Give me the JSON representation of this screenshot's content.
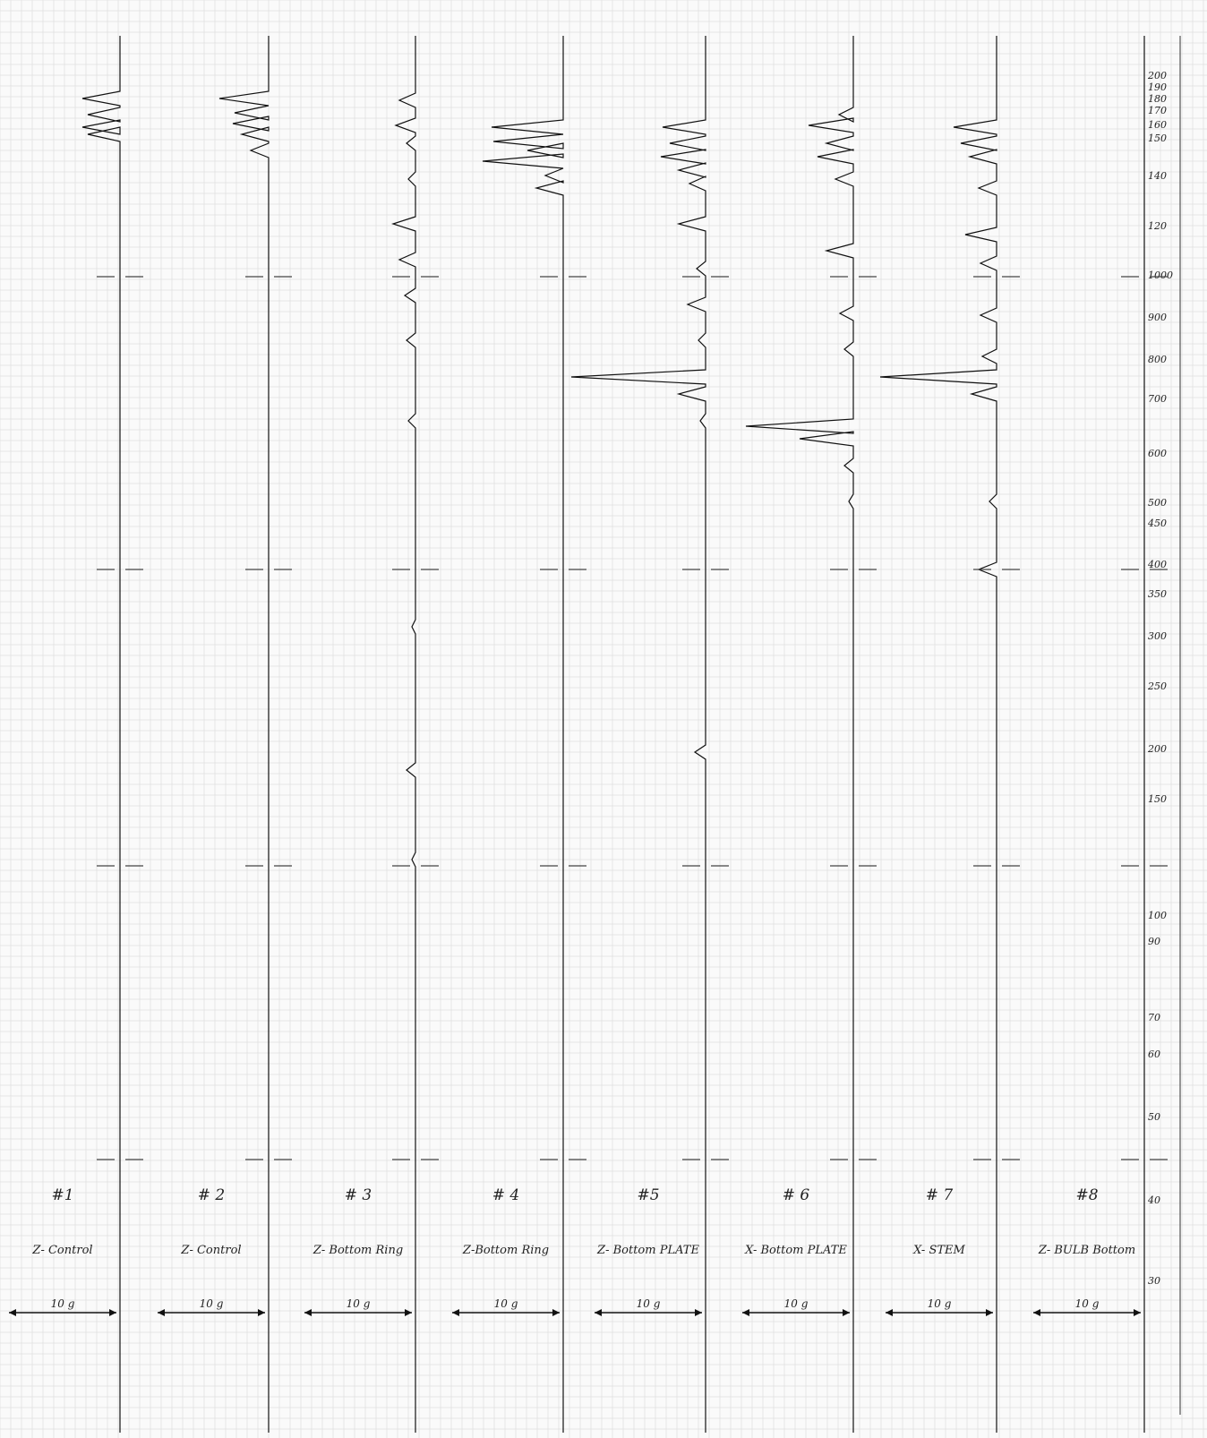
{
  "chart_data": {
    "type": "line",
    "title": "",
    "xlabel": "",
    "ylabel": "",
    "y_axis_labels": [
      "200",
      "190",
      "180",
      "170",
      "160",
      "150",
      "140",
      "120",
      "1000",
      "900",
      "800",
      "700",
      "600",
      "500",
      "450",
      "400",
      "350",
      "300",
      "250",
      "200",
      "150",
      "100",
      "90",
      "70",
      "60",
      "50",
      "40",
      "30"
    ],
    "panels": [
      {
        "number": "#1",
        "label": "Z- Control",
        "scale": "10 g",
        "features": []
      },
      {
        "number": "# 2",
        "label": "Z- Control",
        "scale": "10 g",
        "features": []
      },
      {
        "number": "# 3",
        "label": "Z- Bottom Ring",
        "scale": "10 g",
        "features": [
          "broad shoulder 1300-1050"
        ]
      },
      {
        "number": "# 4",
        "label": "Z-Bottom Ring",
        "scale": "10 g",
        "features": []
      },
      {
        "number": "#5",
        "label": "Z- Bottom PLATE",
        "scale": "10 g",
        "features": [
          "sharp peak ~700"
        ]
      },
      {
        "number": "# 6",
        "label": "X- Bottom PLATE",
        "scale": "10 g",
        "features": [
          "broad peak ~600"
        ]
      },
      {
        "number": "# 7",
        "label": "X- STEM",
        "scale": "10 g",
        "features": [
          "sharp peak ~700",
          "band ~1000"
        ]
      },
      {
        "number": "#8",
        "label": "Z- BULB Bottom",
        "scale": "10 g",
        "features": []
      }
    ]
  }
}
